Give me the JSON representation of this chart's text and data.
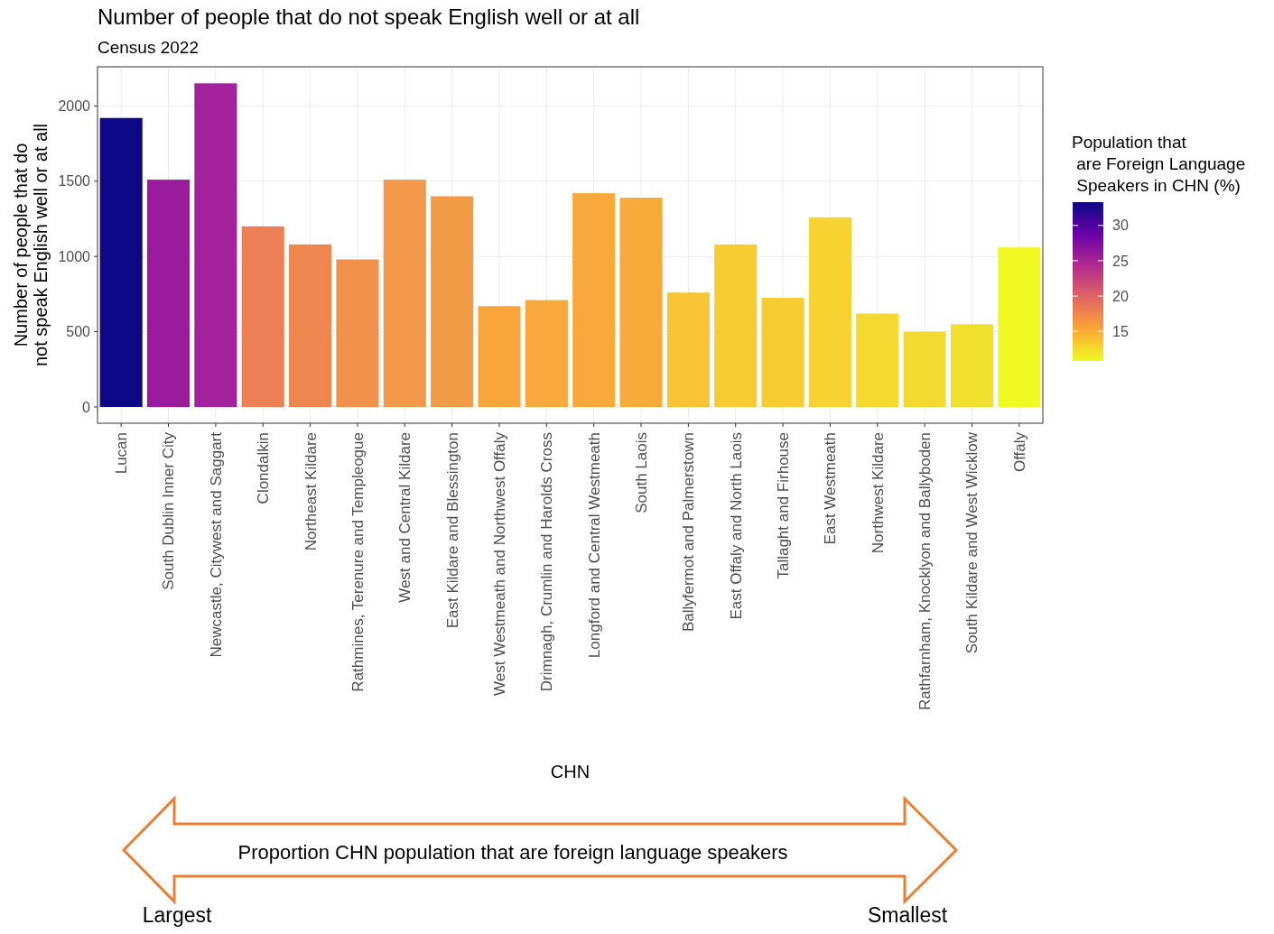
{
  "chart_data": {
    "type": "bar",
    "title": "Number of people that do not speak English well or at all",
    "subtitle": "Census 2022",
    "xlabel": "CHN",
    "ylabel": "Number of people that do\nnot speak English well or at all",
    "clabel": "Population that\n are Foreign Language\n Speakers in CHN (%)",
    "categories": [
      "Lucan",
      "South Dublin Inner City",
      "Newcastle, Citywest and Saggart",
      "Clondalkin",
      "Northeast Kildare",
      "Rathmines, Terenure and Templeogue",
      "West and Central Kildare",
      "East Kildare and Blessington",
      "West Westmeath and Northwest Offaly",
      "Drimnagh, Crumlin and Harolds Cross",
      "Longford and Central Westmeath",
      "South Laois",
      "Ballyfermot and Palmerstown",
      "East Offaly and North Laois",
      "Tallaght and Firhouse",
      "East Westmeath",
      "Northwest Kildare",
      "Rathfarnham, Knocklyon and Ballyboden",
      "South Kildare and West Wicklow",
      "Offaly"
    ],
    "values": [
      1920,
      1510,
      2150,
      1200,
      1080,
      980,
      1510,
      1400,
      670,
      710,
      1420,
      1390,
      760,
      1080,
      725,
      1260,
      620,
      500,
      550,
      1060
    ],
    "colors": [
      "#0d0887",
      "#9a1b9b",
      "#a3219a",
      "#ec7f55",
      "#ee8650",
      "#f1914c",
      "#f3984a",
      "#f39c48",
      "#f8a63c",
      "#f8a83c",
      "#f9a83b",
      "#f9ab3a",
      "#f7c535",
      "#f7cc33",
      "#f7cc33",
      "#f6d232",
      "#f4d930",
      "#f3da30",
      "#f1df2e",
      "#f0f921"
    ],
    "ylim": [
      -108,
      2260
    ],
    "yticks": [
      0,
      500,
      1000,
      1500,
      2000
    ],
    "grid": true,
    "clim": [
      10.8,
      33.3
    ],
    "cticks": [
      15,
      20,
      25,
      30
    ],
    "annotations": [
      "Proportion CHN population that are foreign language speakers",
      "Largest",
      "Smallest"
    ]
  }
}
